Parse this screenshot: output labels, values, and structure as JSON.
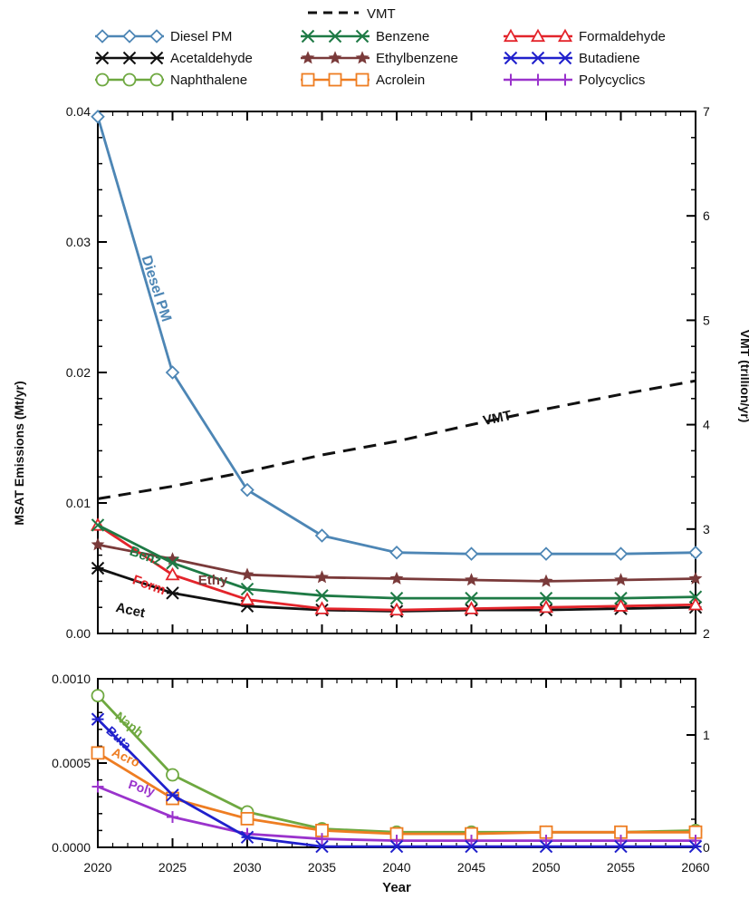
{
  "chart_data": {
    "type": "line",
    "x": [
      2020,
      2025,
      2030,
      2035,
      2040,
      2045,
      2050,
      2055,
      2060
    ],
    "x_tick_labels": [
      "2020",
      "2025",
      "2030",
      "2035",
      "2040",
      "2045",
      "2050",
      "2055",
      "2060"
    ],
    "xlabel": "Year",
    "ylabel_left": "MSAT Emissions (Mt/yr)",
    "ylabel_right": "VMT (trillion/yr)",
    "top_panel": {
      "ylim": [
        0.0,
        0.04
      ],
      "yticks": [
        "0.00",
        "0.01",
        "0.02",
        "0.03",
        "0.04"
      ],
      "right_ylim": [
        2,
        7
      ],
      "right_yticks": [
        "2",
        "3",
        "4",
        "5",
        "6",
        "7"
      ]
    },
    "bottom_panel": {
      "ylim": [
        0.0,
        0.001
      ],
      "yticks": [
        "0.0000",
        "0.0005",
        "0.0010"
      ],
      "right_ylim": [
        0,
        1.5
      ],
      "right_yticks": [
        "0",
        "1"
      ]
    },
    "legend_position": "top",
    "series": [
      {
        "name": "VMT",
        "key": "vmt",
        "panel": "top",
        "axis": "right",
        "color": "#111111",
        "marker": "none",
        "dash": true,
        "values": [
          3.29,
          3.41,
          3.55,
          3.71,
          3.84,
          4.0,
          4.15,
          4.29,
          4.42
        ],
        "label": "VMT"
      },
      {
        "name": "Diesel PM",
        "key": "diesel",
        "panel": "top",
        "axis": "left",
        "color": "#4d86b5",
        "marker": "diamond",
        "values": [
          0.0396,
          0.02,
          0.011,
          0.0075,
          0.0062,
          0.0061,
          0.0061,
          0.0061,
          0.0062
        ],
        "label": "Diesel PM"
      },
      {
        "name": "Benzene",
        "key": "benzene",
        "panel": "top",
        "axis": "left",
        "color": "#1e7a45",
        "marker": "x",
        "values": [
          0.0083,
          0.0054,
          0.0034,
          0.0029,
          0.0027,
          0.0027,
          0.0027,
          0.0027,
          0.0028
        ],
        "label": "Benz"
      },
      {
        "name": "Formaldehyde",
        "key": "formaldehyde",
        "panel": "top",
        "axis": "left",
        "color": "#e3242b",
        "marker": "triangle",
        "values": [
          0.0083,
          0.0045,
          0.0026,
          0.0019,
          0.0018,
          0.0019,
          0.002,
          0.0021,
          0.0022
        ],
        "label": "Form"
      },
      {
        "name": "Acetaldehyde",
        "key": "acetaldehyde",
        "panel": "top",
        "axis": "left",
        "color": "#111111",
        "marker": "asterisk",
        "values": [
          0.005,
          0.0031,
          0.0021,
          0.0018,
          0.0017,
          0.0018,
          0.0018,
          0.0019,
          0.002
        ],
        "label": "Acet"
      },
      {
        "name": "Ethylbenzene",
        "key": "ethylbenzene",
        "panel": "top",
        "axis": "left",
        "color": "#7a3a3a",
        "marker": "star",
        "values": [
          0.0068,
          0.0057,
          0.0045,
          0.0043,
          0.0042,
          0.0041,
          0.004,
          0.0041,
          0.0042
        ],
        "label": "Ethy"
      },
      {
        "name": "Butadiene",
        "key": "butadiene",
        "panel": "bottom",
        "axis": "left",
        "color": "#2020cc",
        "marker": "asterisk",
        "values": [
          0.00076,
          0.00031,
          6e-05,
          5e-06,
          5e-06,
          5e-06,
          5e-06,
          5e-06,
          5e-06
        ],
        "label": "Buta"
      },
      {
        "name": "Naphthalene",
        "key": "naphthalene",
        "panel": "bottom",
        "axis": "left",
        "color": "#6ea840",
        "marker": "circle",
        "values": [
          0.0009,
          0.00043,
          0.00021,
          0.00011,
          9e-05,
          9e-05,
          9e-05,
          9e-05,
          0.0001
        ],
        "label": "Naph"
      },
      {
        "name": "Acrolein",
        "key": "acrolein",
        "panel": "bottom",
        "axis": "left",
        "color": "#ee7d22",
        "marker": "square",
        "values": [
          0.00056,
          0.00029,
          0.00017,
          0.0001,
          8e-05,
          8e-05,
          9e-05,
          9e-05,
          9e-05
        ],
        "label": "Acro"
      },
      {
        "name": "Polycyclics",
        "key": "polycyclics",
        "panel": "bottom",
        "axis": "left",
        "color": "#9a33cc",
        "marker": "plus",
        "values": [
          0.00036,
          0.00018,
          8e-05,
          5e-05,
          4e-05,
          4e-05,
          4e-05,
          4e-05,
          4e-05
        ],
        "label": "Poly"
      }
    ]
  }
}
